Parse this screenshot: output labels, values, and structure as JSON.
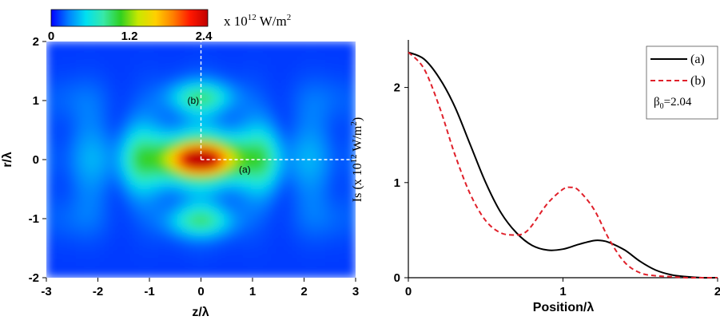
{
  "colors": {
    "curve_a": "#000000",
    "curve_b": "#e0202a",
    "guide_lines": "#ffffff",
    "colormap": [
      "#0000ff",
      "#0080ff",
      "#00e0f0",
      "#38e8a8",
      "#30d020",
      "#c8e800",
      "#ffd000",
      "#ff8000",
      "#ff1800",
      "#c00000"
    ]
  },
  "colorbar": {
    "ticks": [
      "0",
      "1.2",
      "2.4"
    ],
    "unit_prefix": "x 10",
    "unit_exp": "12",
    "unit_suffix": " W/m",
    "unit_sup": "2"
  },
  "chart_data": [
    {
      "type": "heatmap",
      "xlabel": "z/λ",
      "ylabel": "r/λ",
      "xlim": [
        -3,
        3
      ],
      "ylim": [
        -2,
        2
      ],
      "xticks": [
        "-3",
        "-2",
        "-1",
        "0",
        "1",
        "2",
        "3"
      ],
      "yticks": [
        "-2",
        "-1",
        "0",
        "1",
        "2"
      ],
      "value_range": [
        0,
        2.4
      ],
      "peaks": [
        {
          "z": 0,
          "r": 0,
          "value": 2.37
        },
        {
          "z": 0,
          "r": 1.05,
          "value": 0.95
        },
        {
          "z": 0,
          "r": -1.05,
          "value": 0.95
        },
        {
          "z": 1.25,
          "r": 0,
          "value": 0.4
        },
        {
          "z": -1.25,
          "r": 0,
          "value": 0.4
        }
      ],
      "annotations": [
        {
          "text": "(b)",
          "z": -0.15,
          "r": 1.0
        },
        {
          "text": "(a)",
          "z": 0.85,
          "r": -0.17
        }
      ],
      "guide_lines": [
        {
          "label": "(a)",
          "from": [
            0,
            0
          ],
          "to": [
            3,
            0
          ]
        },
        {
          "label": "(b)",
          "from": [
            0,
            0
          ],
          "to": [
            0,
            2
          ]
        }
      ]
    },
    {
      "type": "line",
      "xlabel": "Position/λ",
      "ylabel_main": "Is (x 10",
      "ylabel_exp": "12",
      "ylabel_unit": " W/m",
      "ylabel_sup": "2",
      "ylabel_close": ")",
      "xlim": [
        0,
        2
      ],
      "ylim": [
        0,
        2.5
      ],
      "xticks": [
        "0",
        "1",
        "2"
      ],
      "yticks": [
        "0",
        "1",
        "2"
      ],
      "legend_position": "top-right",
      "legend_note": "=2.04",
      "legend_note_symbol": "β",
      "legend_note_sub": "0",
      "series": [
        {
          "name": "(a)",
          "style": "solid",
          "x": [
            0,
            0.1,
            0.2,
            0.3,
            0.4,
            0.5,
            0.6,
            0.7,
            0.8,
            0.9,
            1.0,
            1.1,
            1.2,
            1.25,
            1.3,
            1.4,
            1.5,
            1.6,
            1.7,
            1.8,
            1.9,
            2.0
          ],
          "y": [
            2.37,
            2.3,
            2.1,
            1.8,
            1.4,
            1.0,
            0.68,
            0.47,
            0.34,
            0.29,
            0.3,
            0.35,
            0.39,
            0.39,
            0.37,
            0.29,
            0.17,
            0.08,
            0.03,
            0.01,
            0.0,
            0.0
          ]
        },
        {
          "name": "(b)",
          "style": "dashed",
          "x": [
            0,
            0.1,
            0.2,
            0.3,
            0.4,
            0.5,
            0.6,
            0.7,
            0.75,
            0.8,
            0.9,
            1.0,
            1.05,
            1.1,
            1.2,
            1.3,
            1.4,
            1.5,
            1.6,
            1.7,
            1.8,
            1.9,
            2.0
          ],
          "y": [
            2.37,
            2.2,
            1.8,
            1.3,
            0.88,
            0.6,
            0.47,
            0.45,
            0.47,
            0.55,
            0.78,
            0.93,
            0.95,
            0.92,
            0.72,
            0.4,
            0.16,
            0.05,
            0.02,
            0.01,
            0.0,
            0.0,
            0.0
          ]
        }
      ]
    }
  ]
}
